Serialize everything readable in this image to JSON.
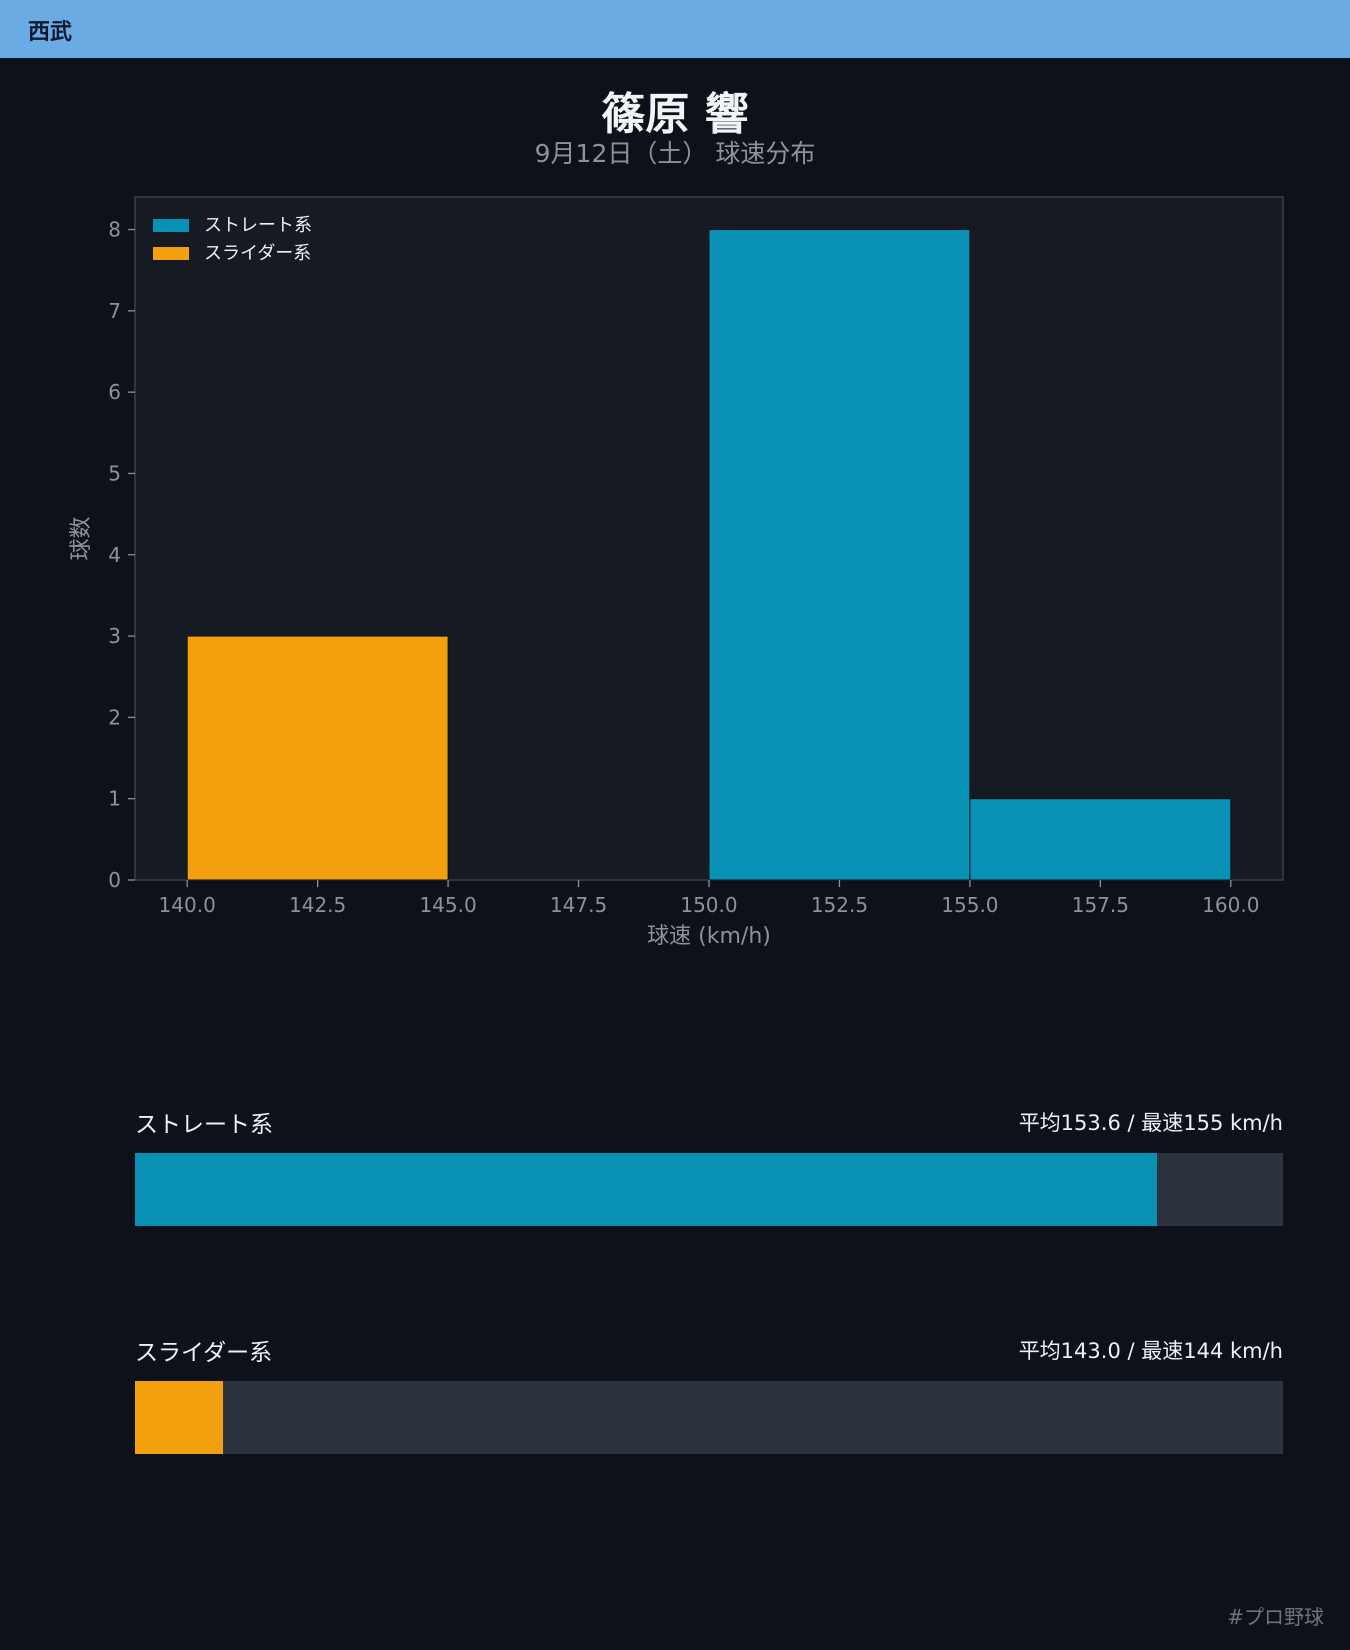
{
  "header": {
    "team": "西武"
  },
  "page": {
    "title": "篠原 響",
    "subtitle": "9月12日（土） 球速分布"
  },
  "chart_data": {
    "type": "bar",
    "xlabel": "球速 (km/h)",
    "ylabel": "球数",
    "xlim": [
      139,
      161
    ],
    "ylim": [
      0,
      8.4
    ],
    "xticks": [
      "140.0",
      "142.5",
      "145.0",
      "147.5",
      "150.0",
      "152.5",
      "155.0",
      "157.5",
      "160.0"
    ],
    "yticks": [
      "0",
      "1",
      "2",
      "3",
      "4",
      "5",
      "6",
      "7",
      "8"
    ],
    "legend_position": "top-left",
    "series": [
      {
        "name": "ストレート系",
        "color": "#0890b5",
        "bins": [
          {
            "x0": 150,
            "x1": 155,
            "count": 8
          },
          {
            "x0": 155,
            "x1": 160,
            "count": 1
          }
        ]
      },
      {
        "name": "スライダー系",
        "color": "#f3a00f",
        "bins": [
          {
            "x0": 140,
            "x1": 145,
            "count": 3
          }
        ]
      }
    ]
  },
  "stats": [
    {
      "label": "ストレート系",
      "value": "平均153.6 / 最速155 km/h",
      "fill_percent": 89,
      "color": "#0890b5"
    },
    {
      "label": "スライダー系",
      "value": "平均143.0 / 最速144 km/h",
      "fill_percent": 7.7,
      "color": "#f3a00f"
    }
  ],
  "footer": {
    "hashtag": "#プロ野球"
  }
}
